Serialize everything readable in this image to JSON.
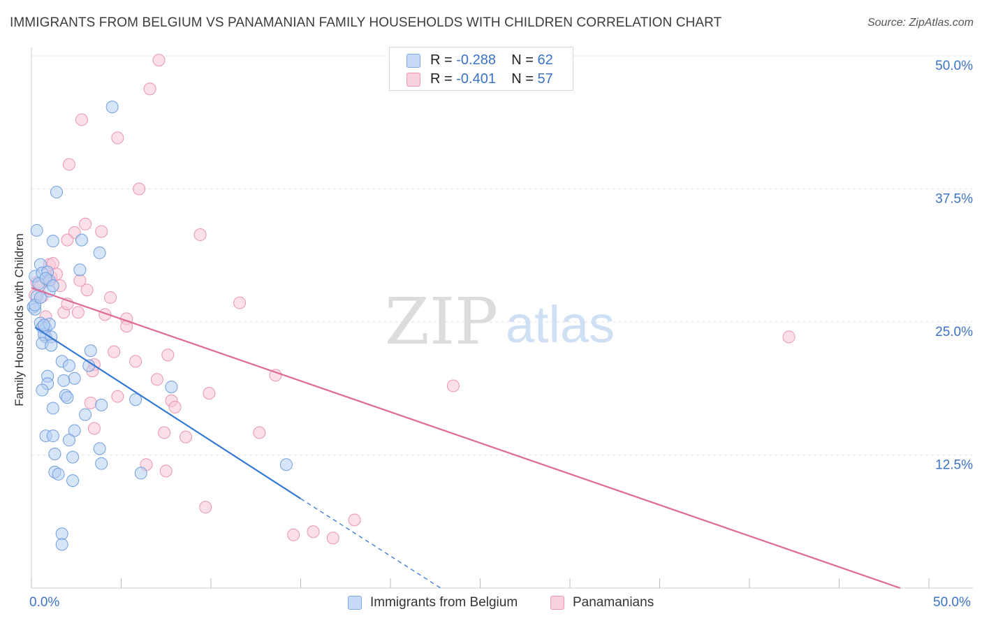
{
  "title": "IMMIGRANTS FROM BELGIUM VS PANAMANIAN FAMILY HOUSEHOLDS WITH CHILDREN CORRELATION CHART",
  "source": "Source: ZipAtlas.com",
  "watermark": {
    "zip": "ZIP",
    "atlas": "atlas"
  },
  "legend": {
    "rows": [
      {
        "r_label": "R = ",
        "r_value": "-0.288",
        "n_label": "N = ",
        "n_value": "62"
      },
      {
        "r_label": "R = ",
        "r_value": "-0.401",
        "n_label": "N = ",
        "n_value": "57"
      }
    ]
  },
  "x_axis": {
    "min_label": "0.0%",
    "max_label": "50.0%"
  },
  "chart_data": {
    "type": "scatter",
    "title": "IMMIGRANTS FROM BELGIUM VS PANAMANIAN FAMILY HOUSEHOLDS WITH CHILDREN CORRELATION CHART",
    "xlabel": "",
    "ylabel": "Family Households with Children",
    "xlim": [
      0,
      50
    ],
    "ylim": [
      0,
      50
    ],
    "y_ticks": [
      {
        "value": 12.5,
        "label": "12.5%"
      },
      {
        "value": 25,
        "label": "25.0%"
      },
      {
        "value": 37.5,
        "label": "37.5%"
      },
      {
        "value": 50,
        "label": "50.0%"
      }
    ],
    "x_ticks": [
      0,
      5,
      10,
      15,
      20,
      25,
      30,
      35,
      40,
      45,
      50
    ],
    "grid": true,
    "legend_position": "top-center",
    "colors": {
      "belgium": "#a9c6f0",
      "belgium_line": "#3578d4",
      "panama": "#f6bcd0",
      "panama_line": "#e06a96",
      "tick": "#3b73c4"
    },
    "series": [
      {
        "name": "Immigrants from Belgium",
        "color": "#a9c6f0",
        "points": [
          [
            4.5,
            45.2
          ],
          [
            1.4,
            37.2
          ],
          [
            0.3,
            33.6
          ],
          [
            1.2,
            32.6
          ],
          [
            2.8,
            32.7
          ],
          [
            3.8,
            31.5
          ],
          [
            0.5,
            30.4
          ],
          [
            0.2,
            29.3
          ],
          [
            0.6,
            29.6
          ],
          [
            0.9,
            29.7
          ],
          [
            2.7,
            29.9
          ],
          [
            0.4,
            28.6
          ],
          [
            1.0,
            28.9
          ],
          [
            0.8,
            29.1
          ],
          [
            1.0,
            27.9
          ],
          [
            0.3,
            27.4
          ],
          [
            0.1,
            26.4
          ],
          [
            0.2,
            26.2
          ],
          [
            0.2,
            26.6
          ],
          [
            0.5,
            24.9
          ],
          [
            0.6,
            24.5
          ],
          [
            0.8,
            24.4
          ],
          [
            1.0,
            24.8
          ],
          [
            0.8,
            23.6
          ],
          [
            0.7,
            23.8
          ],
          [
            1.1,
            23.6
          ],
          [
            0.6,
            23.0
          ],
          [
            1.1,
            22.8
          ],
          [
            3.3,
            22.3
          ],
          [
            1.7,
            21.3
          ],
          [
            3.2,
            20.9
          ],
          [
            0.9,
            19.9
          ],
          [
            2.4,
            19.7
          ],
          [
            1.8,
            19.5
          ],
          [
            0.9,
            19.2
          ],
          [
            0.6,
            18.6
          ],
          [
            1.9,
            18.1
          ],
          [
            2.0,
            17.9
          ],
          [
            5.8,
            17.7
          ],
          [
            3.9,
            17.2
          ],
          [
            1.2,
            16.9
          ],
          [
            7.8,
            18.9
          ],
          [
            3.0,
            16.3
          ],
          [
            0.8,
            14.3
          ],
          [
            1.2,
            14.3
          ],
          [
            2.4,
            14.8
          ],
          [
            2.1,
            13.9
          ],
          [
            3.8,
            13.1
          ],
          [
            1.3,
            12.6
          ],
          [
            2.3,
            12.3
          ],
          [
            3.9,
            11.7
          ],
          [
            14.2,
            11.6
          ],
          [
            1.3,
            10.9
          ],
          [
            1.5,
            10.7
          ],
          [
            6.1,
            10.8
          ],
          [
            2.3,
            10.1
          ],
          [
            1.7,
            5.1
          ],
          [
            1.7,
            4.1
          ],
          [
            0.5,
            27.3
          ],
          [
            1.2,
            28.4
          ],
          [
            0.7,
            24.7
          ],
          [
            2.1,
            20.9
          ]
        ]
      },
      {
        "name": "Panamanians",
        "color": "#f6bcd0",
        "points": [
          [
            7.1,
            49.6
          ],
          [
            6.6,
            46.9
          ],
          [
            2.8,
            44.0
          ],
          [
            4.8,
            42.3
          ],
          [
            2.1,
            39.8
          ],
          [
            6.0,
            37.5
          ],
          [
            3.0,
            34.2
          ],
          [
            3.9,
            33.5
          ],
          [
            2.4,
            33.4
          ],
          [
            9.4,
            33.2
          ],
          [
            2.0,
            32.7
          ],
          [
            1.0,
            30.4
          ],
          [
            1.2,
            30.5
          ],
          [
            1.1,
            29.2
          ],
          [
            1.4,
            29.5
          ],
          [
            2.7,
            28.9
          ],
          [
            0.3,
            28.7
          ],
          [
            0.5,
            28.5
          ],
          [
            1.6,
            28.4
          ],
          [
            3.1,
            28.0
          ],
          [
            0.6,
            27.4
          ],
          [
            4.4,
            27.3
          ],
          [
            11.6,
            26.8
          ],
          [
            1.8,
            25.9
          ],
          [
            2.6,
            25.9
          ],
          [
            4.1,
            25.7
          ],
          [
            5.3,
            25.3
          ],
          [
            0.8,
            25.5
          ],
          [
            5.3,
            24.6
          ],
          [
            4.6,
            22.2
          ],
          [
            7.6,
            21.9
          ],
          [
            5.8,
            21.3
          ],
          [
            3.5,
            21.0
          ],
          [
            3.4,
            20.4
          ],
          [
            13.6,
            20.0
          ],
          [
            7.0,
            19.6
          ],
          [
            23.5,
            19.0
          ],
          [
            9.9,
            18.3
          ],
          [
            4.8,
            18.0
          ],
          [
            7.8,
            17.6
          ],
          [
            3.3,
            17.4
          ],
          [
            8.0,
            17.0
          ],
          [
            3.5,
            15.0
          ],
          [
            7.4,
            14.6
          ],
          [
            8.6,
            14.2
          ],
          [
            12.7,
            14.6
          ],
          [
            6.4,
            11.6
          ],
          [
            7.5,
            11.0
          ],
          [
            42.2,
            23.6
          ],
          [
            9.7,
            7.6
          ],
          [
            18.0,
            6.4
          ],
          [
            14.6,
            5.0
          ],
          [
            15.7,
            5.3
          ],
          [
            16.8,
            4.7
          ],
          [
            0.2,
            27.5
          ],
          [
            0.9,
            28.9
          ],
          [
            2.0,
            26.7
          ]
        ]
      }
    ],
    "trend_lines": [
      {
        "series": "Immigrants from Belgium",
        "from": [
          0.2,
          24.5
        ],
        "to": [
          15.0,
          8.4
        ],
        "dashed_to": [
          22.8,
          0.0
        ]
      },
      {
        "series": "Panamanians",
        "from": [
          0.0,
          28.2
        ],
        "to": [
          48.4,
          0.0
        ]
      }
    ]
  }
}
